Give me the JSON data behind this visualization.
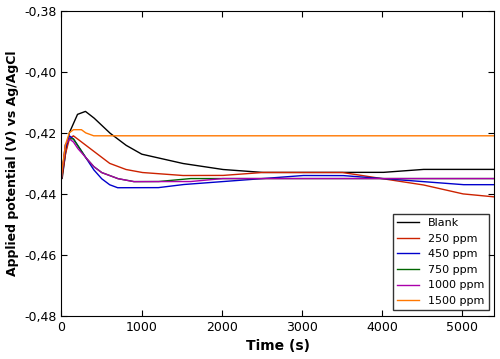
{
  "xlabel": "Time (s)",
  "ylabel": "Applied potential (V) vs Ag/AgCl",
  "xlim": [
    0,
    5400
  ],
  "ylim": [
    -0.48,
    -0.38
  ],
  "xticks": [
    0,
    1000,
    2000,
    3000,
    4000,
    5000
  ],
  "yticks": [
    -0.48,
    -0.46,
    -0.44,
    -0.42,
    -0.4,
    -0.38
  ],
  "series": {
    "Blank": {
      "color": "#000000",
      "t": [
        0,
        10,
        50,
        100,
        200,
        300,
        400,
        600,
        800,
        1000,
        1500,
        2000,
        2500,
        3000,
        3500,
        4000,
        4500,
        5000,
        5400
      ],
      "y": [
        -0.435,
        -0.435,
        -0.427,
        -0.42,
        -0.414,
        -0.413,
        -0.415,
        -0.42,
        -0.424,
        -0.427,
        -0.43,
        -0.432,
        -0.433,
        -0.433,
        -0.433,
        -0.433,
        -0.432,
        -0.432,
        -0.432
      ]
    },
    "250 ppm": {
      "color": "#cc2200",
      "t": [
        0,
        10,
        50,
        100,
        150,
        200,
        300,
        400,
        600,
        800,
        1000,
        1500,
        2000,
        2500,
        3000,
        3500,
        4000,
        4500,
        5000,
        5400
      ],
      "y": [
        -0.435,
        -0.434,
        -0.427,
        -0.422,
        -0.421,
        -0.422,
        -0.424,
        -0.426,
        -0.43,
        -0.432,
        -0.433,
        -0.434,
        -0.434,
        -0.433,
        -0.433,
        -0.433,
        -0.435,
        -0.437,
        -0.44,
        -0.441
      ]
    },
    "450 ppm": {
      "color": "#0000cc",
      "t": [
        0,
        10,
        50,
        100,
        150,
        200,
        300,
        400,
        500,
        600,
        700,
        800,
        1000,
        1200,
        1500,
        2000,
        2500,
        3000,
        3500,
        4000,
        4500,
        5000,
        5400
      ],
      "y": [
        -0.435,
        -0.433,
        -0.425,
        -0.421,
        -0.422,
        -0.424,
        -0.428,
        -0.432,
        -0.435,
        -0.437,
        -0.438,
        -0.438,
        -0.438,
        -0.438,
        -0.437,
        -0.436,
        -0.435,
        -0.434,
        -0.434,
        -0.435,
        -0.436,
        -0.437,
        -0.437
      ]
    },
    "750 ppm": {
      "color": "#006600",
      "t": [
        0,
        10,
        50,
        100,
        150,
        200,
        300,
        400,
        500,
        700,
        900,
        1200,
        1600,
        2000,
        2500,
        3000,
        3500,
        4000,
        4500,
        5000,
        5400
      ],
      "y": [
        -0.435,
        -0.433,
        -0.424,
        -0.422,
        -0.422,
        -0.424,
        -0.428,
        -0.431,
        -0.433,
        -0.435,
        -0.436,
        -0.436,
        -0.435,
        -0.435,
        -0.435,
        -0.435,
        -0.435,
        -0.435,
        -0.435,
        -0.435,
        -0.435
      ]
    },
    "1000 ppm": {
      "color": "#aa00aa",
      "t": [
        0,
        10,
        50,
        100,
        150,
        200,
        300,
        400,
        500,
        600,
        700,
        900,
        1200,
        1600,
        2000,
        2500,
        3000,
        3500,
        4000,
        4500,
        5000,
        5400
      ],
      "y": [
        -0.435,
        -0.433,
        -0.424,
        -0.422,
        -0.423,
        -0.425,
        -0.428,
        -0.431,
        -0.433,
        -0.434,
        -0.435,
        -0.436,
        -0.436,
        -0.436,
        -0.435,
        -0.435,
        -0.435,
        -0.435,
        -0.435,
        -0.435,
        -0.435,
        -0.435
      ]
    },
    "1500 ppm": {
      "color": "#ff7700",
      "t": [
        0,
        10,
        50,
        100,
        150,
        200,
        250,
        300,
        400,
        500,
        700,
        1000,
        1500,
        2000,
        2500,
        3000,
        3500,
        4000,
        4500,
        5000,
        5400
      ],
      "y": [
        -0.435,
        -0.432,
        -0.424,
        -0.42,
        -0.419,
        -0.419,
        -0.419,
        -0.42,
        -0.421,
        -0.421,
        -0.421,
        -0.421,
        -0.421,
        -0.421,
        -0.421,
        -0.421,
        -0.421,
        -0.421,
        -0.421,
        -0.421,
        -0.421
      ]
    }
  },
  "legend_loc": "lower right",
  "figsize": [
    5.0,
    3.59
  ],
  "dpi": 100
}
